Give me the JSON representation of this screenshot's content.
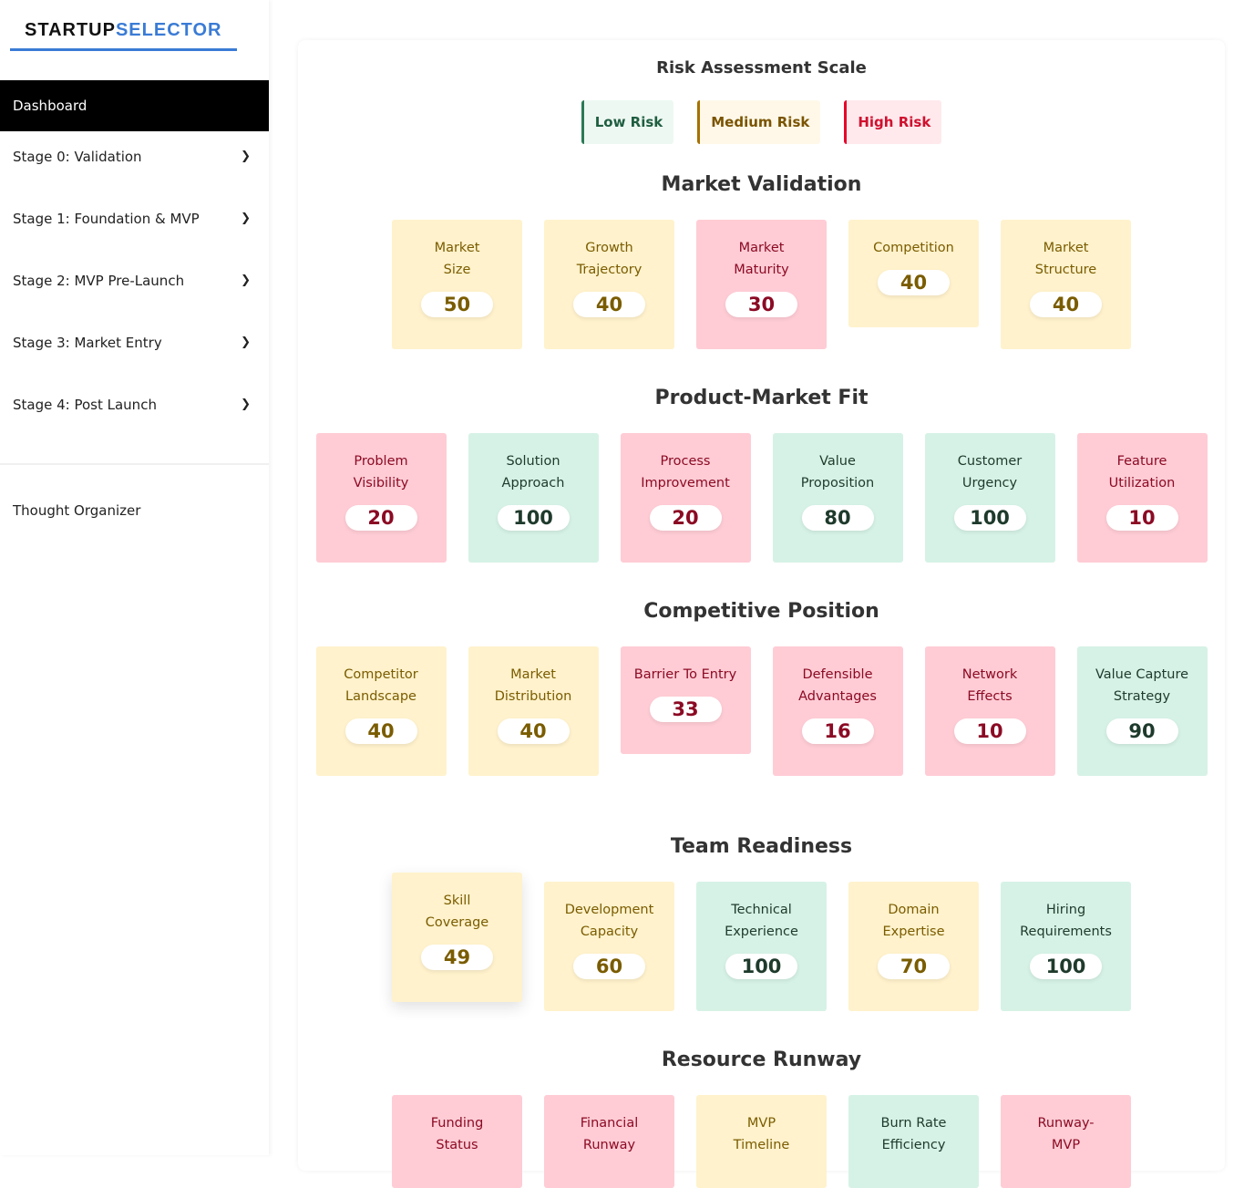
{
  "brand": {
    "part1": "STARTUP",
    "part2": "SELECTOR"
  },
  "sidebar": {
    "dashboard": "Dashboard",
    "items": [
      {
        "label": "Stage 0: Validation"
      },
      {
        "label": "Stage 1: Foundation & MVP"
      },
      {
        "label": "Stage 2: MVP Pre-Launch"
      },
      {
        "label": "Stage 3: Market Entry"
      },
      {
        "label": "Stage 4: Post Launch"
      }
    ],
    "thought_organizer": "Thought Organizer",
    "chevron_icon": "chevron-down-icon"
  },
  "colors": {
    "low_bg": "#d6f2e6",
    "medium_bg": "#fff2cc",
    "high_bg": "#ffccd5",
    "accent": "#3a7bd5"
  },
  "scale": {
    "title": "Risk Assessment Scale",
    "low": "Low Risk",
    "medium": "Medium Risk",
    "high": "High Risk"
  },
  "sections": [
    {
      "title": "Market Validation",
      "cards": [
        {
          "label": "Market Size",
          "value": "50",
          "risk": "medium"
        },
        {
          "label": "Growth Trajectory",
          "value": "40",
          "risk": "medium"
        },
        {
          "label": "Market Maturity",
          "value": "30",
          "risk": "high"
        },
        {
          "label": "Competition",
          "value": "40",
          "risk": "medium"
        },
        {
          "label": "Market Structure",
          "value": "40",
          "risk": "medium"
        }
      ]
    },
    {
      "title": "Product-Market Fit",
      "cards": [
        {
          "label": "Problem Visibility",
          "value": "20",
          "risk": "high"
        },
        {
          "label": "Solution Approach",
          "value": "100",
          "risk": "low"
        },
        {
          "label": "Process Improvement",
          "value": "20",
          "risk": "high"
        },
        {
          "label": "Value Proposition",
          "value": "80",
          "risk": "low"
        },
        {
          "label": "Customer Urgency",
          "value": "100",
          "risk": "low"
        },
        {
          "label": "Feature Utilization",
          "value": "10",
          "risk": "high"
        }
      ]
    },
    {
      "title": "Competitive Position",
      "cards": [
        {
          "label": "Competitor Landscape",
          "value": "40",
          "risk": "medium"
        },
        {
          "label": "Market Distribution",
          "value": "40",
          "risk": "medium"
        },
        {
          "label": "Barrier To Entry",
          "value": "33",
          "risk": "high"
        },
        {
          "label": "Defensible Advantages",
          "value": "16",
          "risk": "high"
        },
        {
          "label": "Network Effects",
          "value": "10",
          "risk": "high"
        },
        {
          "label": "Value Capture Strategy",
          "value": "90",
          "risk": "low"
        }
      ]
    },
    {
      "title": "Team Readiness",
      "cards": [
        {
          "label": "Skill Coverage",
          "value": "49",
          "risk": "medium"
        },
        {
          "label": "Development Capacity",
          "value": "60",
          "risk": "medium"
        },
        {
          "label": "Technical Experience",
          "value": "100",
          "risk": "low"
        },
        {
          "label": "Domain Expertise",
          "value": "70",
          "risk": "medium"
        },
        {
          "label": "Hiring Requirements",
          "value": "100",
          "risk": "low"
        }
      ]
    },
    {
      "title": "Resource Runway",
      "cards": [
        {
          "label": "Funding Status",
          "value": "",
          "risk": "high"
        },
        {
          "label": "Financial Runway",
          "value": "",
          "risk": "high"
        },
        {
          "label": "MVP Timeline",
          "value": "",
          "risk": "medium"
        },
        {
          "label": "Burn Rate Efficiency",
          "value": "",
          "risk": "low"
        },
        {
          "label": "Runway-MVP",
          "value": "",
          "risk": "high"
        }
      ]
    }
  ]
}
